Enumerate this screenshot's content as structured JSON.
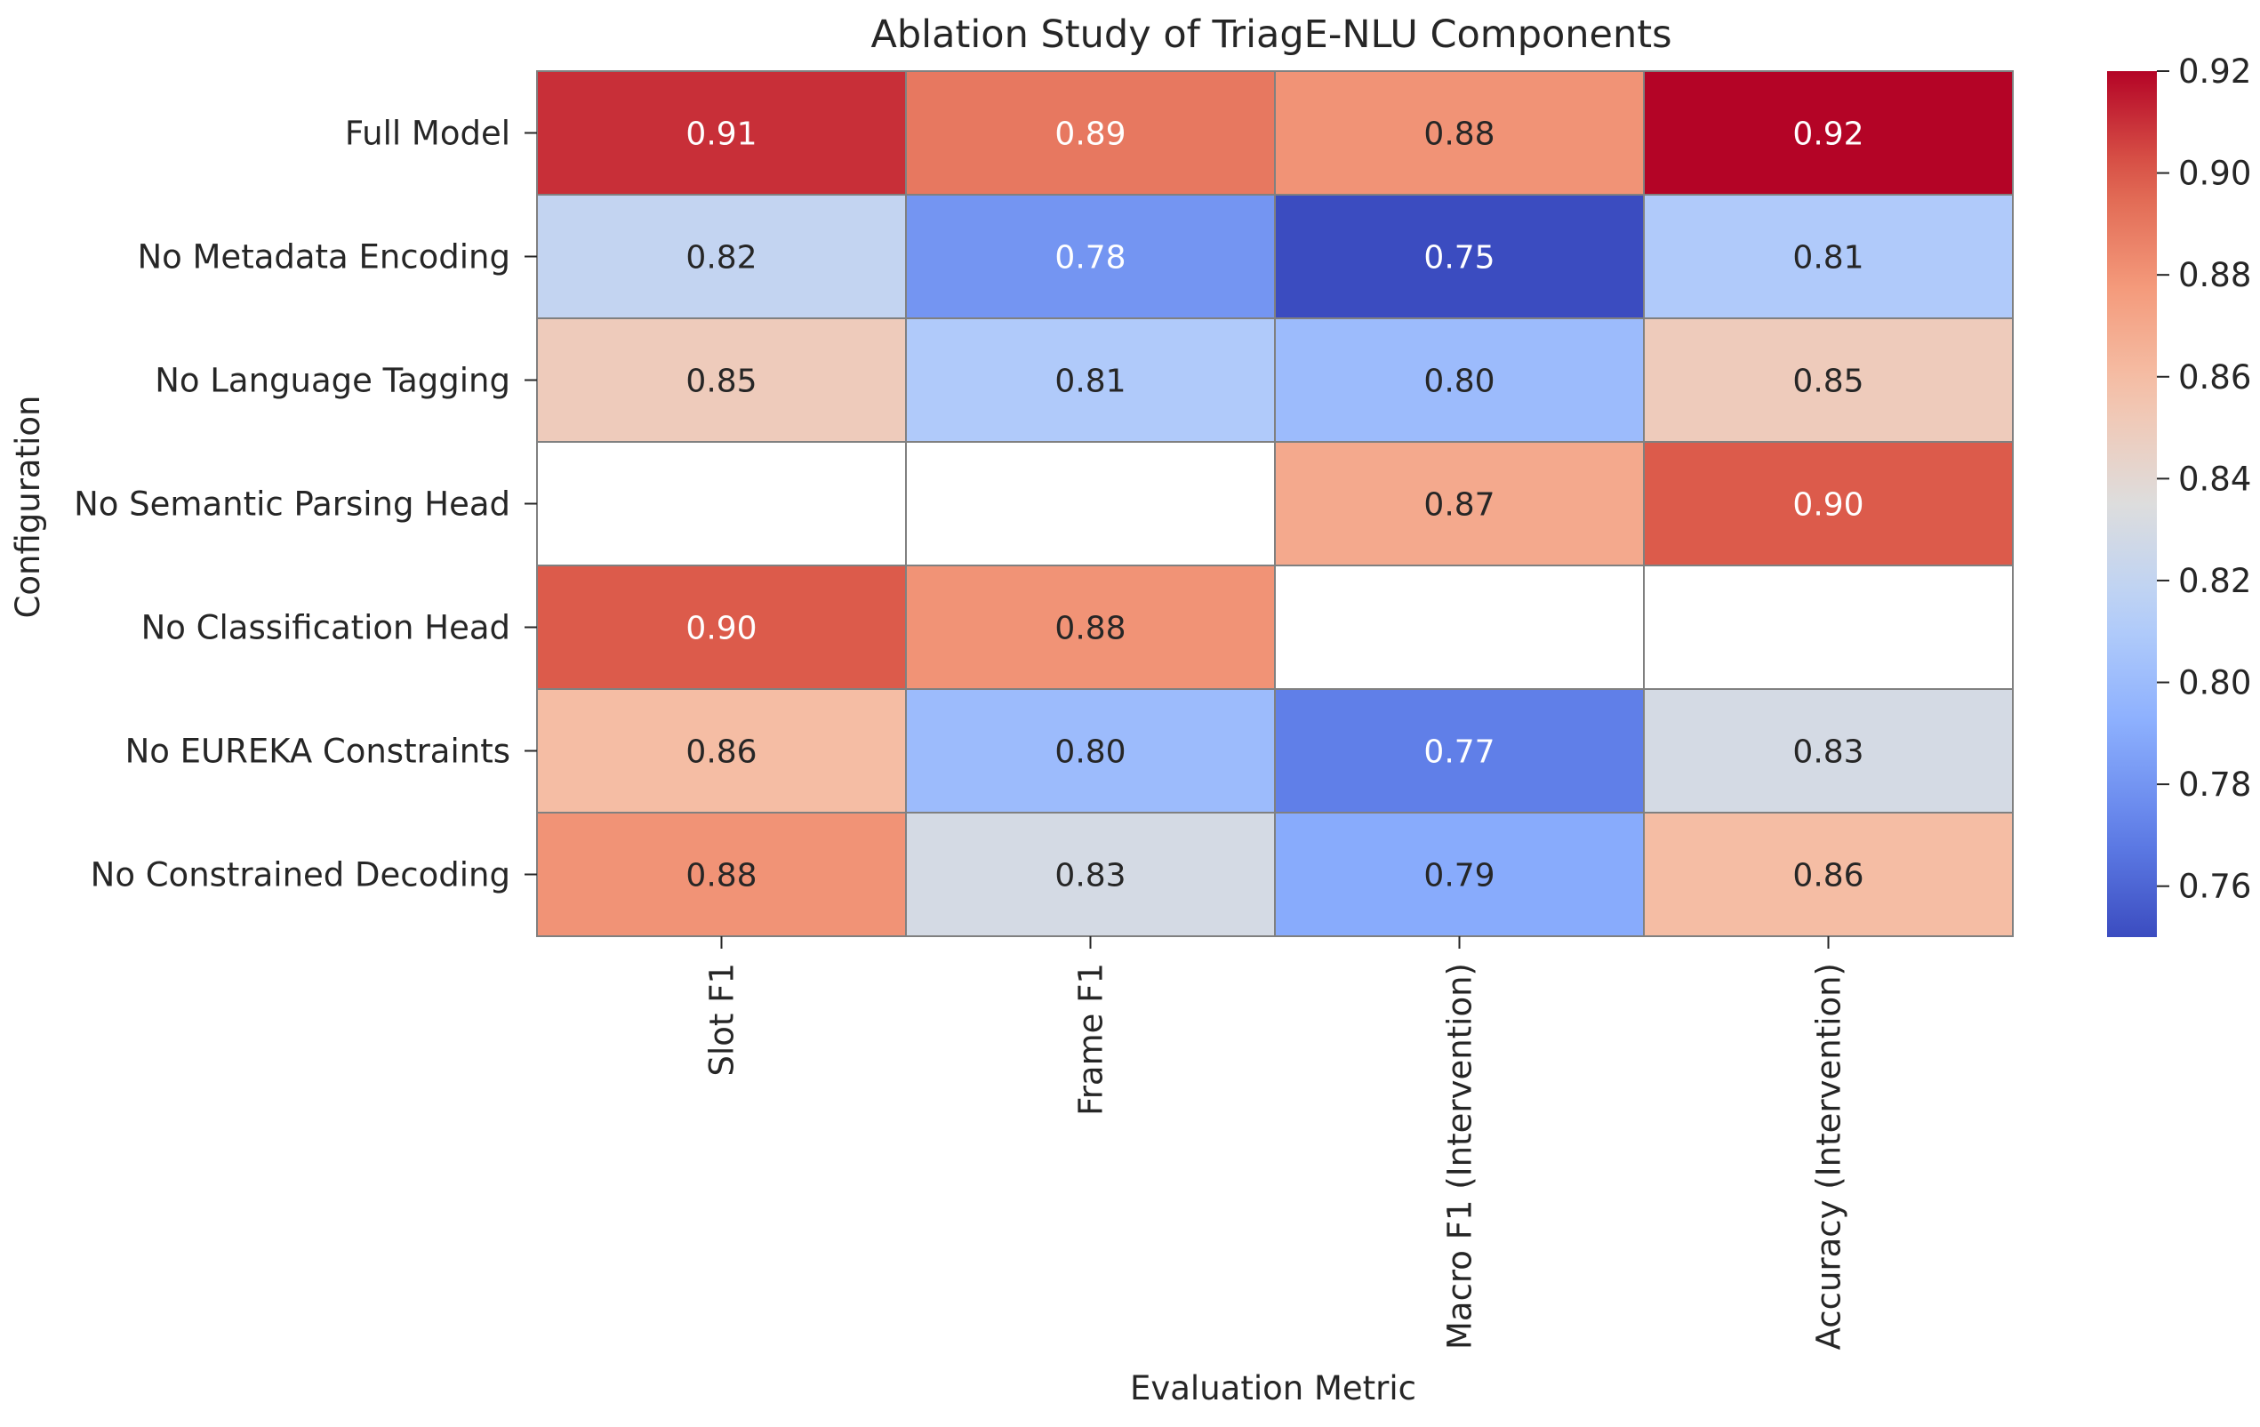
{
  "chart_data": {
    "type": "heatmap",
    "title": "Ablation Study of TriagE-NLU Components",
    "xlabel": "Evaluation Metric",
    "ylabel": "Configuration",
    "columns": [
      "Slot F1",
      "Frame F1",
      "Macro F1 (Intervention)",
      "Accuracy (Intervention)"
    ],
    "rows": [
      {
        "label": "Full Model",
        "values": [
          0.91,
          0.89,
          0.88,
          0.92
        ],
        "display": [
          "0.91",
          "0.89",
          "0.88",
          "0.92"
        ]
      },
      {
        "label": "No Metadata Encoding",
        "values": [
          0.82,
          0.78,
          0.75,
          0.81
        ],
        "display": [
          "0.82",
          "0.78",
          "0.75",
          "0.81"
        ]
      },
      {
        "label": "No Language Tagging",
        "values": [
          0.85,
          0.81,
          0.8,
          0.85
        ],
        "display": [
          "0.85",
          "0.81",
          "0.80",
          "0.85"
        ]
      },
      {
        "label": "No Semantic Parsing Head",
        "values": [
          null,
          null,
          0.87,
          0.9
        ],
        "display": [
          "",
          "",
          "0.87",
          "0.90"
        ]
      },
      {
        "label": "No Classification Head",
        "values": [
          0.9,
          0.88,
          null,
          null
        ],
        "display": [
          "0.90",
          "0.88",
          "",
          ""
        ]
      },
      {
        "label": "No EUREKA Constraints",
        "values": [
          0.86,
          0.8,
          0.77,
          0.83
        ],
        "display": [
          "0.86",
          "0.80",
          "0.77",
          "0.83"
        ]
      },
      {
        "label": "No Constrained Decoding",
        "values": [
          0.88,
          0.83,
          0.79,
          0.86
        ],
        "display": [
          "0.88",
          "0.83",
          "0.79",
          "0.86"
        ]
      }
    ],
    "colormap": "coolwarm",
    "colorbar": {
      "range": [
        0.75,
        0.92
      ],
      "ticks": [
        0.76,
        0.78,
        0.8,
        0.82,
        0.84,
        0.86,
        0.88,
        0.9,
        0.92
      ],
      "tick_labels": [
        "0.76",
        "0.78",
        "0.80",
        "0.82",
        "0.84",
        "0.86",
        "0.88",
        "0.90",
        "0.92"
      ]
    },
    "missing_color": "#ffffff",
    "cell_border_color": "#808080"
  }
}
